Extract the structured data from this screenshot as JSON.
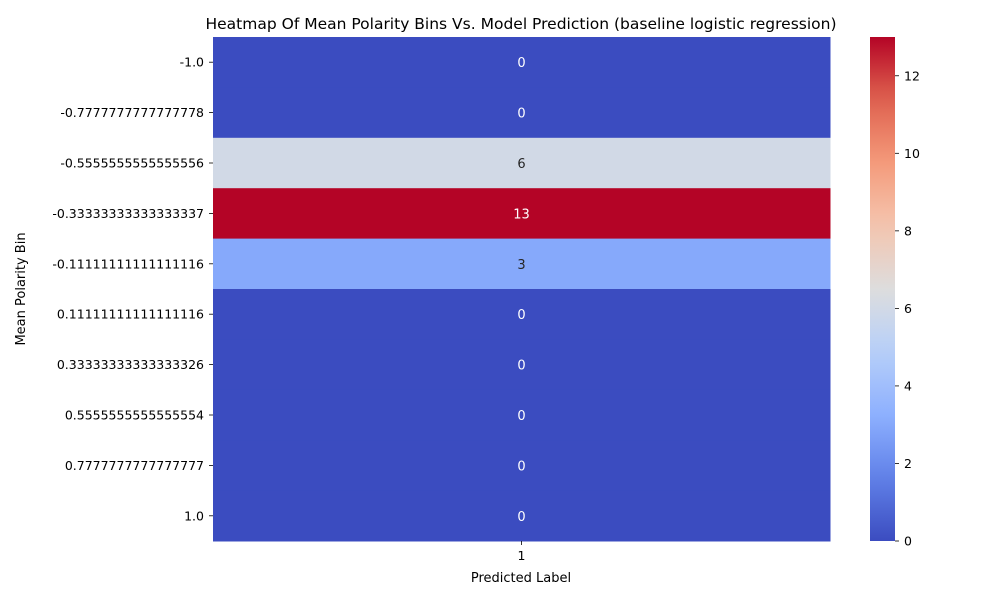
{
  "chart_data": {
    "type": "heatmap",
    "title": "Heatmap Of Mean Polarity Bins Vs. Model Prediction (baseline logistic regression)",
    "xlabel": "Predicted Label",
    "ylabel": "Mean Polarity Bin",
    "columns": [
      "1"
    ],
    "rows": [
      "-1.0",
      "-0.7777777777777778",
      "-0.5555555555555556",
      "-0.33333333333333337",
      "-0.11111111111111116",
      "0.11111111111111116",
      "0.33333333333333326",
      "0.5555555555555554",
      "0.7777777777777777",
      "1.0"
    ],
    "values": [
      [
        0
      ],
      [
        0
      ],
      [
        6
      ],
      [
        13
      ],
      [
        3
      ],
      [
        0
      ],
      [
        0
      ],
      [
        0
      ],
      [
        0
      ],
      [
        0
      ]
    ],
    "colormap": "coolwarm",
    "color_range": [
      0,
      13
    ],
    "colorbar_ticks": [
      0,
      2,
      4,
      6,
      8,
      10,
      12
    ],
    "annotate": true
  }
}
